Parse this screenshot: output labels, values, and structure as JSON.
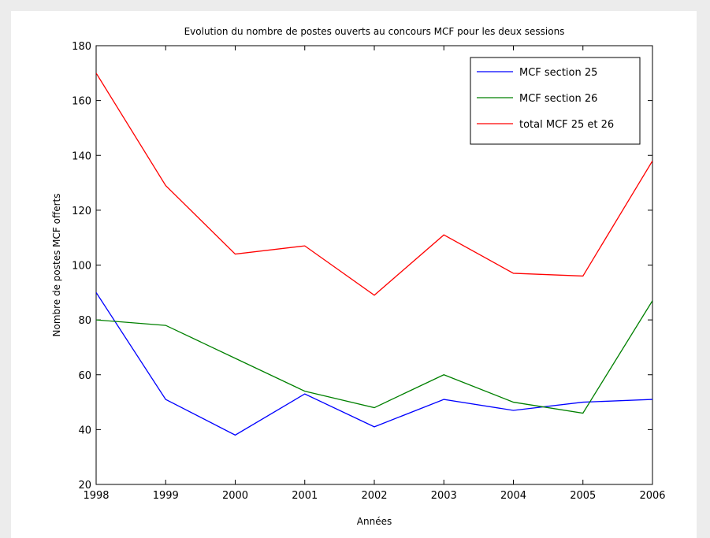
{
  "chart_data": {
    "type": "line",
    "title": "Evolution du nombre de postes ouverts au concours MCF pour les deux sessions",
    "xlabel": "Années",
    "ylabel": "Nombre de postes MCF offerts",
    "x": [
      1998,
      1999,
      2000,
      2001,
      2002,
      2003,
      2004,
      2005,
      2006
    ],
    "xlim": [
      1998,
      2006
    ],
    "ylim": [
      20,
      180
    ],
    "yticks": [
      20,
      40,
      60,
      80,
      100,
      120,
      140,
      160,
      180
    ],
    "grid": false,
    "legend_position": "top-right",
    "series": [
      {
        "name": "MCF section 25",
        "color": "#0000ff",
        "values": [
          90,
          51,
          38,
          53,
          41,
          51,
          47,
          50,
          51
        ]
      },
      {
        "name": "MCF section 26",
        "color": "#008000",
        "values": [
          80,
          78,
          66,
          54,
          48,
          60,
          50,
          46,
          87
        ]
      },
      {
        "name": "total MCF 25 et 26",
        "color": "#ff0000",
        "values": [
          170,
          129,
          104,
          107,
          89,
          111,
          97,
          96,
          138
        ]
      }
    ]
  }
}
